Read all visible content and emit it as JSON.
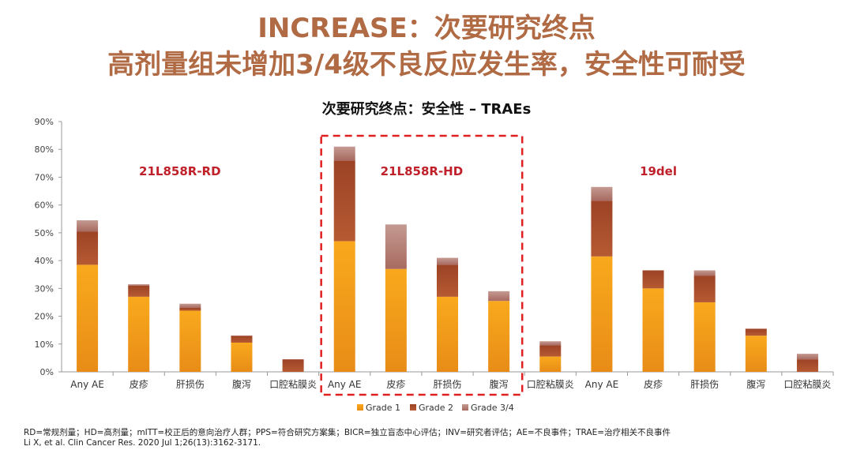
{
  "title_line1": "INCREASE：次要研究终点",
  "title_line2": "高剂量组未增加3/4级不良反应发生率，安全性可耐受",
  "footnote": "RD=常规剂量；HD=高剂量；mITT=校正后的意向治疗人群；PPS=符合研究方案集；BICR=独立盲态中心评估；INV=研究者评估；AE=不良事件；TRAE=治疗相关不良事件",
  "citation": "Li X, et al. Clin Cancer Res. 2020 Jul 1;26(13):3162-3171.",
  "colors": {
    "title": "#b06a44",
    "group_label": "#c0202a",
    "highlight_box": "#e02020",
    "grade1": "#f5a21d",
    "grade2": "#a54a2a",
    "grade34": "#b07a70"
  },
  "chart_data": {
    "type": "bar",
    "stacked": true,
    "title": "次要研究终点：安全性 – TRAEs",
    "xlabel": "",
    "ylabel": "",
    "ylim": [
      0,
      90
    ],
    "yticks": [
      "0%",
      "10%",
      "20%",
      "30%",
      "40%",
      "50%",
      "60%",
      "70%",
      "80%",
      "90%"
    ],
    "legend_position": "bottom",
    "groups": [
      {
        "name": "21L858R-RD",
        "highlighted": false,
        "categories": [
          "Any AE",
          "皮疹",
          "肝损伤",
          "腹泻",
          "口腔粘膜炎"
        ],
        "grade1": [
          38.5,
          27,
          22,
          10.5,
          0
        ],
        "grade2": [
          12,
          4,
          1,
          2.5,
          4.5
        ],
        "grade34": [
          4,
          0.5,
          1.5,
          0,
          0
        ]
      },
      {
        "name": "21L858R-HD",
        "highlighted": true,
        "categories": [
          "Any AE",
          "皮疹",
          "肝损伤",
          "腹泻"
        ],
        "grade1": [
          47,
          37,
          27,
          25.5
        ],
        "grade2": [
          29,
          0,
          11.5,
          0
        ],
        "grade34": [
          5,
          16,
          2.5,
          3.5
        ]
      },
      {
        "name": "19del",
        "highlighted": false,
        "categories": [
          "口腔粘膜炎",
          "Any AE",
          "皮疹",
          "肝损伤",
          "腹泻",
          "口腔粘膜炎"
        ],
        "grade1": [
          5.5,
          41.5,
          30,
          25,
          13,
          0
        ],
        "grade2": [
          4,
          20,
          6.5,
          9.5,
          2.5,
          4.5
        ],
        "grade34": [
          1.5,
          5,
          0,
          2,
          0,
          2
        ]
      }
    ],
    "series": [
      {
        "name": "Grade 1",
        "key": "grade1"
      },
      {
        "name": "Grade 2",
        "key": "grade2"
      },
      {
        "name": "Grade 3/4",
        "key": "grade34"
      }
    ]
  }
}
